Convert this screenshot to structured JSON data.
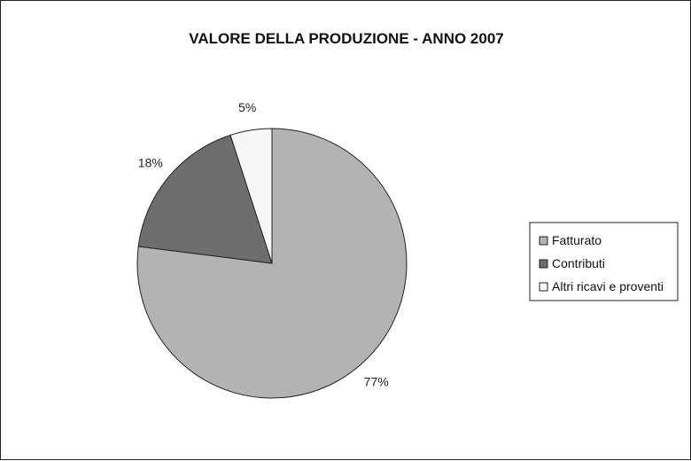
{
  "chart_data": {
    "type": "pie",
    "title": "VALORE DELLA PRODUZIONE - ANNO 2007",
    "categories": [
      "Fatturato",
      "Contributi",
      "Altri ricavi e proventi"
    ],
    "values": [
      77,
      18,
      5
    ],
    "labels": [
      "77%",
      "18%",
      "5%"
    ],
    "colors": [
      "#b3b3b3",
      "#6e6e6e",
      "#f7f7f7"
    ],
    "legend": "right"
  }
}
